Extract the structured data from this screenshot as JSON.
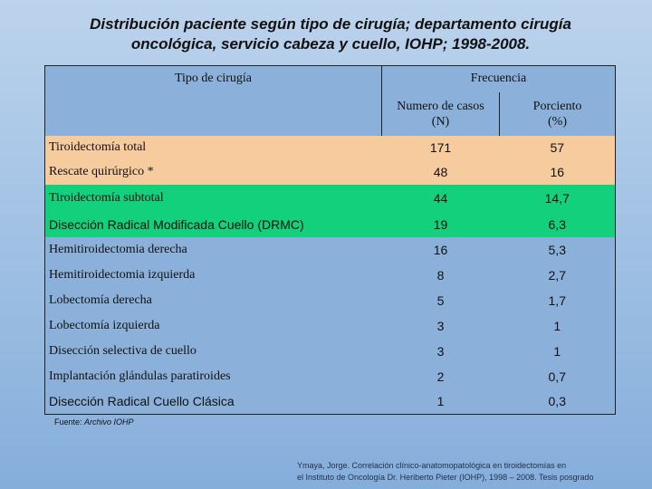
{
  "title": {
    "line1": "Distribución paciente según tipo de cirugía; departamento cirugía",
    "line2": "oncológica, servicio cabeza y cuello, IOHP; 1998-2008."
  },
  "table": {
    "header": {
      "type_label": "Tipo de cirugía",
      "freq_label": "Frecuencia",
      "cases_label_1": "Numero de casos",
      "cases_label_2": "(N)",
      "pct_label_1": "Porciento",
      "pct_label_2": "(%)"
    },
    "rows": [
      {
        "label": "Tiroidectomía total",
        "n": "171",
        "pct": "57",
        "bg": "#f6cc9f"
      },
      {
        "label": "Rescate quirúrgico *",
        "n": "48",
        "pct": "16",
        "bg": "#f6cc9f"
      },
      {
        "label": "Tiroidectomía subtotal",
        "n": "44",
        "pct": "14,7",
        "bg": "#12d07c"
      },
      {
        "label": "Disección Radical Modificada Cuello (DRMC)",
        "n": "19",
        "pct": "6,3",
        "bg": "#12d07c"
      },
      {
        "label": "Hemitiroidectomia derecha",
        "n": "16",
        "pct": "5,3",
        "bg": ""
      },
      {
        "label": "Hemitiroidectomia izquierda",
        "n": "8",
        "pct": "2,7",
        "bg": ""
      },
      {
        "label": "Lobectomía derecha",
        "n": "5",
        "pct": "1,7",
        "bg": ""
      },
      {
        "label": "Lobectomía izquierda",
        "n": "3",
        "pct": "1",
        "bg": ""
      },
      {
        "label": "Disección selectiva de cuello",
        "n": "3",
        "pct": "1",
        "bg": ""
      },
      {
        "label": "Implantación glándulas paratiroides",
        "n": "2",
        "pct": "0,7",
        "bg": ""
      },
      {
        "label": "Disección Radical Cuello Clásica",
        "n": "1",
        "pct": "0,3",
        "bg": ""
      }
    ]
  },
  "source": {
    "prefix": "Fuente: ",
    "name": "Archivo IOHP"
  },
  "citation": {
    "line1": "Ymaya, Jorge. Correlación clínico-anatomopatológica en tiroidectomías en",
    "line2": "el Instituto de Oncología Dr. Heriberto Pieter (IOHP), 1998 – 2008. Tesis posgrado"
  }
}
